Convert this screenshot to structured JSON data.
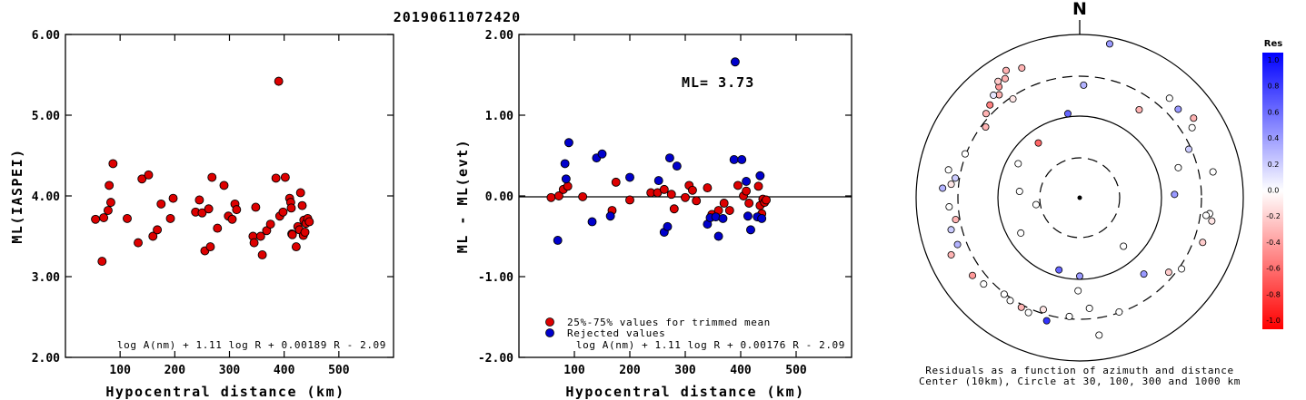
{
  "title": "20190611072420",
  "colors": {
    "accepted": "#dd0000",
    "rejected": "#0000cc",
    "frame": "#000000"
  },
  "charts": [
    {
      "ylabel": "ML(IASPEI)",
      "xlabel": "Hypocentral distance (km)",
      "formula": "log A(nm) + 1.11 log R + 0.00189 R - 2.09",
      "xticks": [
        "100",
        "200",
        "300",
        "400",
        "500"
      ],
      "yticks": [
        "2.00",
        "3.00",
        "4.00",
        "5.00",
        "6.00"
      ]
    },
    {
      "ylabel": "ML - ML(evt)",
      "xlabel": "Hypocentral distance (km)",
      "formula": "log A(nm) + 1.11 log R + 0.00176 R - 2.09",
      "annotation": "ML= 3.73",
      "legend": [
        "25%-75% values for trimmed mean",
        "Rejected values"
      ],
      "xticks": [
        "100",
        "200",
        "300",
        "400",
        "500"
      ],
      "yticks": [
        "-2.00",
        "-1.00",
        "0.00",
        "1.00",
        "2.00"
      ]
    }
  ],
  "polar": {
    "north": "N",
    "caption1": "Residuals as a function of azimuth and distance",
    "caption2": "Center (10km), Circle at 30, 100, 300 and 1000 km",
    "colorbar_title": "Res",
    "colorbar_ticks": [
      "1.0",
      "0.8",
      "0.6",
      "0.4",
      "0.2",
      "0.0",
      "-0.2",
      "-0.4",
      "-0.6",
      "-0.8",
      "-1.0"
    ]
  },
  "chart_data": [
    {
      "type": "scatter",
      "title": "20190611072420",
      "xlabel": "Hypocentral distance (km)",
      "ylabel": "ML(IASPEI)",
      "xlim": [
        0,
        600
      ],
      "ylim": [
        2.0,
        6.0
      ],
      "points": [
        [
          55,
          3.71
        ],
        [
          67,
          3.19
        ],
        [
          70,
          3.73
        ],
        [
          78,
          3.82
        ],
        [
          80,
          4.13
        ],
        [
          83,
          3.92
        ],
        [
          87,
          4.4
        ],
        [
          113,
          3.72
        ],
        [
          133,
          3.42
        ],
        [
          140,
          4.21
        ],
        [
          152,
          4.26
        ],
        [
          160,
          3.5
        ],
        [
          168,
          3.58
        ],
        [
          175,
          3.9
        ],
        [
          192,
          3.72
        ],
        [
          197,
          3.97
        ],
        [
          238,
          3.8
        ],
        [
          245,
          3.95
        ],
        [
          250,
          3.79
        ],
        [
          255,
          3.32
        ],
        [
          262,
          3.84
        ],
        [
          265,
          3.37
        ],
        [
          268,
          4.23
        ],
        [
          278,
          3.6
        ],
        [
          290,
          4.13
        ],
        [
          298,
          3.75
        ],
        [
          305,
          3.71
        ],
        [
          310,
          3.9
        ],
        [
          313,
          3.83
        ],
        [
          343,
          3.5
        ],
        [
          345,
          3.42
        ],
        [
          348,
          3.86
        ],
        [
          357,
          3.5
        ],
        [
          360,
          3.27
        ],
        [
          368,
          3.57
        ],
        [
          375,
          3.65
        ],
        [
          385,
          4.22
        ],
        [
          390,
          5.42
        ],
        [
          392,
          3.75
        ],
        [
          398,
          3.8
        ],
        [
          402,
          4.23
        ],
        [
          410,
          3.97
        ],
        [
          412,
          3.92
        ],
        [
          413,
          3.85
        ],
        [
          414,
          3.53
        ],
        [
          415,
          3.52
        ],
        [
          422,
          3.37
        ],
        [
          425,
          3.62
        ],
        [
          428,
          3.58
        ],
        [
          430,
          4.04
        ],
        [
          433,
          3.88
        ],
        [
          435,
          3.51
        ],
        [
          436,
          3.7
        ],
        [
          438,
          3.55
        ],
        [
          440,
          3.66
        ],
        [
          443,
          3.72
        ],
        [
          446,
          3.68
        ]
      ]
    },
    {
      "type": "scatter",
      "xlabel": "Hypocentral distance (km)",
      "ylabel": "ML - ML(evt)",
      "xlim": [
        0,
        600
      ],
      "ylim": [
        -2.0,
        2.0
      ],
      "annotation": "ML= 3.73",
      "series": [
        {
          "name": "25%-75% values for trimmed mean",
          "points": [
            [
              58,
              -0.02
            ],
            [
              72,
              0.0
            ],
            [
              80,
              0.08
            ],
            [
              88,
              0.12
            ],
            [
              115,
              -0.01
            ],
            [
              168,
              -0.18
            ],
            [
              175,
              0.17
            ],
            [
              200,
              -0.05
            ],
            [
              238,
              0.04
            ],
            [
              250,
              0.04
            ],
            [
              262,
              0.08
            ],
            [
              275,
              0.02
            ],
            [
              280,
              -0.16
            ],
            [
              300,
              -0.02
            ],
            [
              307,
              0.13
            ],
            [
              313,
              0.07
            ],
            [
              320,
              -0.06
            ],
            [
              340,
              0.1
            ],
            [
              348,
              -0.23
            ],
            [
              360,
              -0.18
            ],
            [
              370,
              -0.09
            ],
            [
              380,
              -0.18
            ],
            [
              395,
              0.13
            ],
            [
              405,
              0.0
            ],
            [
              410,
              0.06
            ],
            [
              415,
              -0.09
            ],
            [
              432,
              0.12
            ],
            [
              435,
              -0.12
            ],
            [
              438,
              -0.22
            ],
            [
              440,
              -0.04
            ],
            [
              443,
              -0.08
            ],
            [
              446,
              -0.05
            ]
          ]
        },
        {
          "name": "Rejected values",
          "points": [
            [
              70,
              -0.55
            ],
            [
              83,
              0.4
            ],
            [
              85,
              0.21
            ],
            [
              90,
              0.66
            ],
            [
              132,
              -0.32
            ],
            [
              140,
              0.47
            ],
            [
              150,
              0.52
            ],
            [
              165,
              -0.25
            ],
            [
              200,
              0.23
            ],
            [
              252,
              0.19
            ],
            [
              262,
              -0.45
            ],
            [
              268,
              -0.38
            ],
            [
              272,
              0.47
            ],
            [
              285,
              0.37
            ],
            [
              340,
              -0.35
            ],
            [
              345,
              -0.27
            ],
            [
              355,
              -0.26
            ],
            [
              360,
              -0.5
            ],
            [
              368,
              -0.28
            ],
            [
              388,
              0.45
            ],
            [
              390,
              1.66
            ],
            [
              402,
              0.45
            ],
            [
              410,
              0.18
            ],
            [
              413,
              -0.25
            ],
            [
              418,
              -0.42
            ],
            [
              430,
              -0.26
            ],
            [
              435,
              0.25
            ],
            [
              438,
              -0.28
            ]
          ]
        }
      ]
    },
    {
      "type": "scatter",
      "projection": "polar",
      "title": "Residuals as a function of azimuth and distance",
      "colorbar": {
        "title": "Res",
        "min": -1.0,
        "max": 1.0
      },
      "points": [
        {
          "az": -30,
          "r": 0.9,
          "res": -0.3
        },
        {
          "az": -32,
          "r": 0.86,
          "res": -0.3
        },
        {
          "az": -36,
          "r": 0.84,
          "res": -0.4
        },
        {
          "az": -38,
          "r": 0.8,
          "res": -0.3
        },
        {
          "az": -40,
          "r": 0.82,
          "res": 0.1
        },
        {
          "az": -35,
          "r": 0.87,
          "res": -0.2
        },
        {
          "az": -44,
          "r": 0.79,
          "res": -0.5
        },
        {
          "az": -24,
          "r": 0.87,
          "res": -0.3
        },
        {
          "az": -34,
          "r": 0.73,
          "res": -0.1
        },
        {
          "az": -48,
          "r": 0.77,
          "res": -0.3
        },
        {
          "az": -53,
          "r": 0.72,
          "res": -0.3
        },
        {
          "az": -69,
          "r": 0.75,
          "res": 0.0
        },
        {
          "az": -78,
          "r": 0.82,
          "res": 0.0
        },
        {
          "az": -81,
          "r": 0.77,
          "res": 0.2
        },
        {
          "az": -84,
          "r": 0.79,
          "res": -0.1
        },
        {
          "az": -86,
          "r": 0.84,
          "res": 0.3
        },
        {
          "az": -94,
          "r": 0.8,
          "res": 0.0
        },
        {
          "az": -100,
          "r": 0.77,
          "res": -0.3
        },
        {
          "az": -104,
          "r": 0.81,
          "res": 0.2
        },
        {
          "az": -111,
          "r": 0.8,
          "res": 0.3
        },
        {
          "az": -114,
          "r": 0.86,
          "res": -0.3
        },
        {
          "az": -126,
          "r": 0.81,
          "res": -0.4
        },
        {
          "az": -132,
          "r": 0.79,
          "res": 0.0
        },
        {
          "az": -146,
          "r": 0.76,
          "res": 0.0
        },
        {
          "az": -156,
          "r": 0.77,
          "res": 0.0
        },
        {
          "az": -152,
          "r": 0.76,
          "res": -0.3
        },
        {
          "az": -165,
          "r": 0.78,
          "res": 0.8
        },
        {
          "az": -162,
          "r": 0.72,
          "res": -0.1
        },
        {
          "az": -175,
          "r": 0.73,
          "res": 0.0
        },
        {
          "az": -164,
          "r": 0.46,
          "res": 0.6
        },
        {
          "az": -37,
          "r": 0.42,
          "res": -0.6
        },
        {
          "az": -84,
          "r": 0.37,
          "res": 0.0
        },
        {
          "az": -99,
          "r": 0.27,
          "res": 0.0
        },
        {
          "az": -121,
          "r": 0.42,
          "res": 0.0
        },
        {
          "az": -61,
          "r": 0.43,
          "res": 0.0
        },
        {
          "az": 2,
          "r": 0.69,
          "res": 0.3
        },
        {
          "az": -8,
          "r": 0.52,
          "res": 0.6
        },
        {
          "az": 11,
          "r": 0.96,
          "res": 0.4
        },
        {
          "az": 34,
          "r": 0.65,
          "res": -0.3
        },
        {
          "az": 42,
          "r": 0.82,
          "res": 0.0
        },
        {
          "az": 48,
          "r": 0.81,
          "res": 0.4
        },
        {
          "az": 55,
          "r": 0.85,
          "res": -0.3
        },
        {
          "az": 58,
          "r": 0.81,
          "res": 0.0
        },
        {
          "az": 66,
          "r": 0.73,
          "res": 0.2
        },
        {
          "az": 73,
          "r": 0.63,
          "res": 0.0
        },
        {
          "az": 79,
          "r": 0.83,
          "res": 0.0
        },
        {
          "az": 97,
          "r": 0.8,
          "res": 0.0
        },
        {
          "az": 98,
          "r": 0.78,
          "res": 0.0
        },
        {
          "az": 100,
          "r": 0.82,
          "res": -0.1
        },
        {
          "az": 110,
          "r": 0.8,
          "res": -0.2
        },
        {
          "az": 88,
          "r": 0.58,
          "res": 0.4
        },
        {
          "az": 125,
          "r": 0.76,
          "res": 0.0
        },
        {
          "az": 130,
          "r": 0.71,
          "res": -0.2
        },
        {
          "az": 140,
          "r": 0.61,
          "res": 0.4
        },
        {
          "az": 161,
          "r": 0.74,
          "res": 0.0
        },
        {
          "az": 172,
          "r": 0.85,
          "res": 0.0
        },
        {
          "az": -179,
          "r": 0.57,
          "res": 0.0
        },
        {
          "az": 180,
          "r": 0.48,
          "res": 0.4
        },
        {
          "az": 175,
          "r": 0.68,
          "res": 0.0
        },
        {
          "az": 138,
          "r": 0.4,
          "res": 0.0
        },
        {
          "az": -142,
          "r": 0.75,
          "res": 0.0
        }
      ]
    }
  ]
}
